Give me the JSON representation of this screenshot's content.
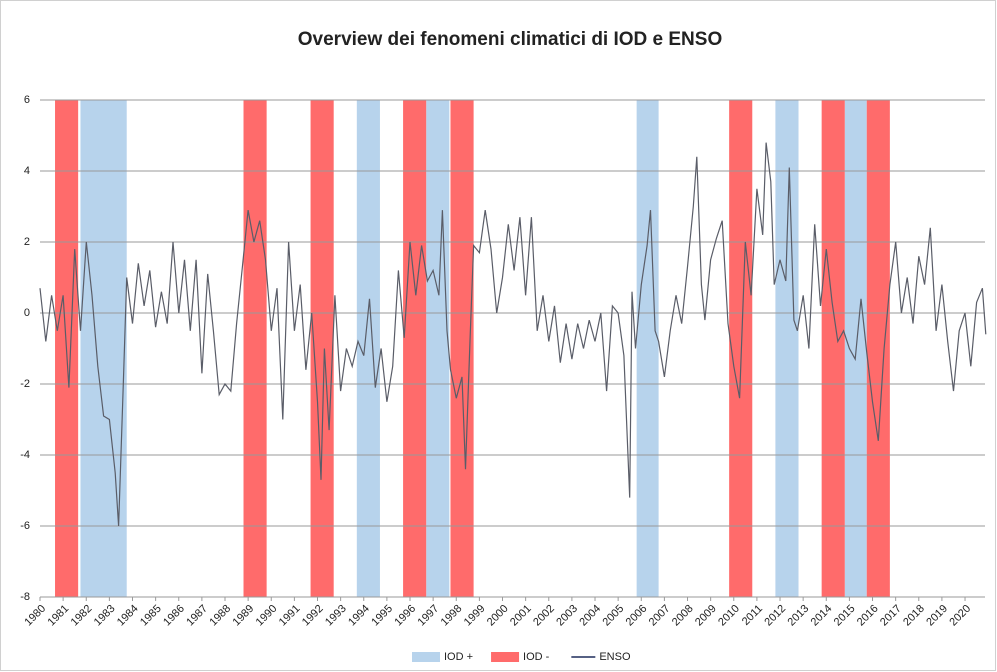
{
  "chart_data": {
    "type": "line",
    "title": "Overview dei fenomeni climatici di IOD e ENSO",
    "xlim": [
      1980,
      2020.95
    ],
    "xticks": [
      1980,
      1981,
      1982,
      1983,
      1984,
      1985,
      1986,
      1987,
      1988,
      1989,
      1990,
      1991,
      1992,
      1993,
      1994,
      1995,
      1996,
      1997,
      1998,
      1999,
      2000,
      2001,
      2002,
      2003,
      2004,
      2005,
      2006,
      2007,
      2008,
      2009,
      2010,
      2011,
      2012,
      2013,
      2014,
      2015,
      2016,
      2017,
      2018,
      2019,
      2020
    ],
    "ylim": [
      -8,
      6
    ],
    "yticks": [
      -8,
      -6,
      -4,
      -2,
      0,
      2,
      4,
      6
    ],
    "grid": true,
    "legend": "bottom",
    "bands": [
      {
        "name": "IOD +",
        "color": "#b7d3ec",
        "periods": [
          [
            1981.75,
            1983.75
          ],
          [
            1993.7,
            1994.7
          ],
          [
            1996.7,
            1997.7
          ],
          [
            2005.8,
            2006.75
          ],
          [
            2011.8,
            2012.8
          ],
          [
            2014.8,
            2015.75
          ]
        ]
      },
      {
        "name": "IOD -",
        "color": "#ff6b6b",
        "periods": [
          [
            1980.65,
            1981.65
          ],
          [
            1988.8,
            1989.8
          ],
          [
            1991.7,
            1992.7
          ],
          [
            1995.7,
            1996.7
          ],
          [
            1997.75,
            1998.75
          ],
          [
            2009.8,
            2010.8
          ],
          [
            2013.8,
            2014.8
          ],
          [
            2015.75,
            2016.75
          ]
        ]
      }
    ],
    "series": [
      {
        "name": "ENSO",
        "color": "#5a5d68",
        "x": [
          1980,
          1980.25,
          1980.5,
          1980.75,
          1981,
          1981.25,
          1981.5,
          1981.75,
          1982,
          1982.25,
          1982.5,
          1982.75,
          1983,
          1983.25,
          1983.4,
          1983.6,
          1983.75,
          1984,
          1984.25,
          1984.5,
          1984.75,
          1985,
          1985.25,
          1985.5,
          1985.75,
          1986,
          1986.25,
          1986.5,
          1986.75,
          1987,
          1987.25,
          1987.5,
          1987.75,
          1988,
          1988.25,
          1988.5,
          1988.75,
          1989,
          1989.25,
          1989.5,
          1989.75,
          1990,
          1990.25,
          1990.5,
          1990.75,
          1991,
          1991.25,
          1991.5,
          1991.75,
          1992,
          1992.15,
          1992.3,
          1992.5,
          1992.75,
          1993,
          1993.25,
          1993.5,
          1993.75,
          1994,
          1994.25,
          1994.5,
          1994.75,
          1995,
          1995.25,
          1995.5,
          1995.75,
          1996,
          1996.25,
          1996.5,
          1996.75,
          1997,
          1997.25,
          1997.4,
          1997.6,
          1997.75,
          1998,
          1998.25,
          1998.4,
          1998.6,
          1998.75,
          1999,
          1999.25,
          1999.5,
          1999.75,
          2000,
          2000.25,
          2000.5,
          2000.75,
          2001,
          2001.25,
          2001.5,
          2001.75,
          2002,
          2002.25,
          2002.5,
          2002.75,
          2003,
          2003.25,
          2003.5,
          2003.75,
          2004,
          2004.25,
          2004.5,
          2004.75,
          2005,
          2005.25,
          2005.5,
          2005.6,
          2005.75,
          2006,
          2006.25,
          2006.4,
          2006.6,
          2006.75,
          2007,
          2007.25,
          2007.5,
          2007.75,
          2008,
          2008.25,
          2008.4,
          2008.6,
          2008.75,
          2009,
          2009.25,
          2009.5,
          2009.75,
          2010,
          2010.25,
          2010.5,
          2010.75,
          2011,
          2011.25,
          2011.4,
          2011.6,
          2011.75,
          2012,
          2012.25,
          2012.4,
          2012.6,
          2012.75,
          2013,
          2013.25,
          2013.5,
          2013.75,
          2014,
          2014.25,
          2014.5,
          2014.75,
          2015,
          2015.25,
          2015.5,
          2015.75,
          2016,
          2016.25,
          2016.5,
          2016.75,
          2017,
          2017.25,
          2017.5,
          2017.75,
          2018,
          2018.25,
          2018.5,
          2018.75,
          2019,
          2019.25,
          2019.5,
          2019.75,
          2020,
          2020.25,
          2020.5,
          2020.75,
          2020.9
        ],
        "values": [
          0.7,
          -0.8,
          0.5,
          -0.5,
          0.5,
          -2.1,
          1.8,
          -0.5,
          2.0,
          0.5,
          -1.5,
          -2.9,
          -3.0,
          -4.5,
          -6.0,
          -2.0,
          1.0,
          -0.3,
          1.4,
          0.2,
          1.2,
          -0.4,
          0.6,
          -0.3,
          2.0,
          0.0,
          1.5,
          -0.5,
          1.5,
          -1.7,
          1.1,
          -0.5,
          -2.3,
          -2.0,
          -2.2,
          -0.3,
          1.3,
          2.9,
          2.0,
          2.6,
          1.5,
          -0.5,
          0.7,
          -3.0,
          2.0,
          -0.5,
          0.8,
          -1.6,
          0.0,
          -2.5,
          -4.7,
          -1.0,
          -3.3,
          0.5,
          -2.2,
          -1.0,
          -1.5,
          -0.8,
          -1.2,
          0.4,
          -2.1,
          -1.0,
          -2.5,
          -1.5,
          1.2,
          -0.7,
          2.0,
          0.5,
          1.9,
          0.9,
          1.2,
          0.5,
          2.9,
          -0.5,
          -1.6,
          -2.4,
          -1.8,
          -4.4,
          -0.7,
          1.9,
          1.7,
          2.9,
          1.8,
          0.0,
          1.0,
          2.5,
          1.2,
          2.7,
          0.5,
          2.7,
          -0.5,
          0.5,
          -0.8,
          0.2,
          -1.4,
          -0.3,
          -1.3,
          -0.3,
          -1.0,
          -0.2,
          -0.8,
          0.0,
          -2.2,
          0.2,
          0.0,
          -1.2,
          -5.2,
          0.6,
          -1.0,
          0.8,
          1.9,
          2.9,
          -0.5,
          -0.8,
          -1.8,
          -0.5,
          0.5,
          -0.3,
          1.3,
          3.0,
          4.4,
          0.8,
          -0.2,
          1.5,
          2.1,
          2.6,
          -0.3,
          -1.5,
          -2.4,
          2.0,
          0.5,
          3.5,
          2.2,
          4.8,
          3.7,
          0.8,
          1.5,
          0.9,
          4.1,
          -0.2,
          -0.5,
          0.5,
          -1.0,
          2.5,
          0.2,
          1.8,
          0.3,
          -0.8,
          -0.5,
          -1.0,
          -1.3,
          0.4,
          -1.1,
          -2.5,
          -3.6,
          -1.0,
          0.8,
          2.0,
          0.0,
          1.0,
          -0.3,
          1.6,
          0.8,
          2.4,
          -0.5,
          0.8,
          -0.8,
          -2.2,
          -0.5,
          0.0,
          -1.5,
          0.3,
          0.7,
          -0.6
        ]
      }
    ]
  }
}
